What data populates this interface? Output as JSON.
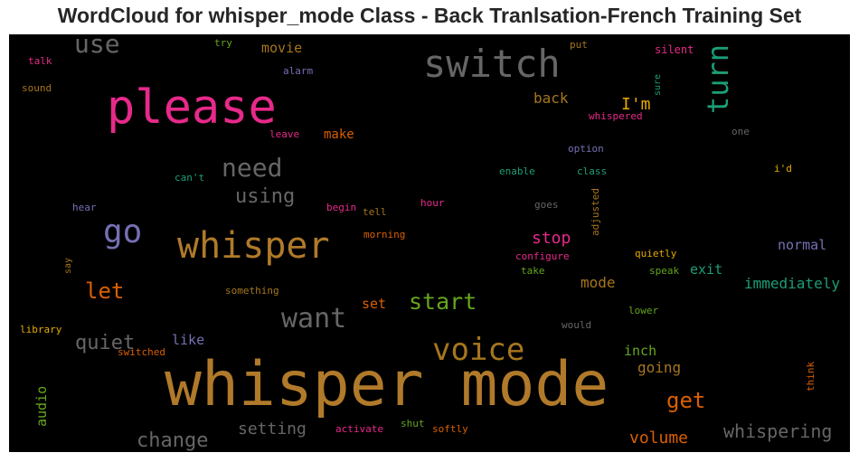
{
  "chart_data": {
    "type": "wordcloud",
    "title": "WordCloud for whisper_mode Class - Back Tranlsation-French Training Set",
    "background": "#000000",
    "words": [
      {
        "text": "whisper mode",
        "color": "#b07a2a"
      },
      {
        "text": "please",
        "color": "#e7298a"
      },
      {
        "text": "switch",
        "color": "#666666"
      },
      {
        "text": "whisper",
        "color": "#b07a2a"
      },
      {
        "text": "voice",
        "color": "#a6761d"
      },
      {
        "text": "go",
        "color": "#7570b3"
      },
      {
        "text": "turn",
        "color": "#1b9e77"
      },
      {
        "text": "want",
        "color": "#666666"
      },
      {
        "text": "need",
        "color": "#666666"
      },
      {
        "text": "use",
        "color": "#666666"
      },
      {
        "text": "start",
        "color": "#66a61e"
      },
      {
        "text": "let",
        "color": "#d95f02"
      },
      {
        "text": "get",
        "color": "#d95f02"
      },
      {
        "text": "quiet",
        "color": "#666666"
      },
      {
        "text": "change",
        "color": "#666666"
      },
      {
        "text": "using",
        "color": "#666666"
      },
      {
        "text": "whispering",
        "color": "#666666"
      },
      {
        "text": "volume",
        "color": "#d95f02"
      },
      {
        "text": "I'm",
        "color": "#e6ab02"
      },
      {
        "text": "setting",
        "color": "#666666"
      },
      {
        "text": "stop",
        "color": "#e7298a"
      },
      {
        "text": "immediately",
        "color": "#1b9e77"
      },
      {
        "text": "going",
        "color": "#a6761d"
      },
      {
        "text": "mode",
        "color": "#a6761d"
      },
      {
        "text": "normal",
        "color": "#7570b3"
      },
      {
        "text": "exit",
        "color": "#1b9e77"
      },
      {
        "text": "back",
        "color": "#a6761d"
      },
      {
        "text": "inch",
        "color": "#66a61e"
      },
      {
        "text": "like",
        "color": "#7570b3"
      },
      {
        "text": "audio",
        "color": "#66a61e"
      },
      {
        "text": "movie",
        "color": "#a6761d"
      },
      {
        "text": "make",
        "color": "#d95f02"
      },
      {
        "text": "set",
        "color": "#d95f02"
      },
      {
        "text": "whispered",
        "color": "#e7298a"
      },
      {
        "text": "try",
        "color": "#66a61e"
      },
      {
        "text": "alarm",
        "color": "#7570b3"
      },
      {
        "text": "talk",
        "color": "#e7298a"
      },
      {
        "text": "sound",
        "color": "#a6761d"
      },
      {
        "text": "put",
        "color": "#a6761d"
      },
      {
        "text": "silent",
        "color": "#e7298a"
      },
      {
        "text": "sure",
        "color": "#1b9e77"
      },
      {
        "text": "leave",
        "color": "#e7298a"
      },
      {
        "text": "one",
        "color": "#666666"
      },
      {
        "text": "option",
        "color": "#7570b3"
      },
      {
        "text": "can't",
        "color": "#1b9e77"
      },
      {
        "text": "enable",
        "color": "#1b9e77"
      },
      {
        "text": "class",
        "color": "#1b9e77"
      },
      {
        "text": "i'd",
        "color": "#e6ab02"
      },
      {
        "text": "hear",
        "color": "#7570b3"
      },
      {
        "text": "begin",
        "color": "#e7298a"
      },
      {
        "text": "tell",
        "color": "#a6761d"
      },
      {
        "text": "hour",
        "color": "#e7298a"
      },
      {
        "text": "goes",
        "color": "#666666"
      },
      {
        "text": "adjusted",
        "color": "#a6761d"
      },
      {
        "text": "morning",
        "color": "#d95f02"
      },
      {
        "text": "say",
        "color": "#a6761d"
      },
      {
        "text": "configure",
        "color": "#e7298a"
      },
      {
        "text": "quietly",
        "color": "#e6ab02"
      },
      {
        "text": "take",
        "color": "#66a61e"
      },
      {
        "text": "speak",
        "color": "#66a61e"
      },
      {
        "text": "something",
        "color": "#a6761d"
      },
      {
        "text": "lower",
        "color": "#66a61e"
      },
      {
        "text": "library",
        "color": "#e6ab02"
      },
      {
        "text": "would",
        "color": "#666666"
      },
      {
        "text": "switched",
        "color": "#d95f02"
      },
      {
        "text": "think",
        "color": "#d95f02"
      },
      {
        "text": "activate",
        "color": "#e7298a"
      },
      {
        "text": "shut",
        "color": "#66a61e"
      },
      {
        "text": "softly",
        "color": "#d95f02"
      }
    ]
  }
}
